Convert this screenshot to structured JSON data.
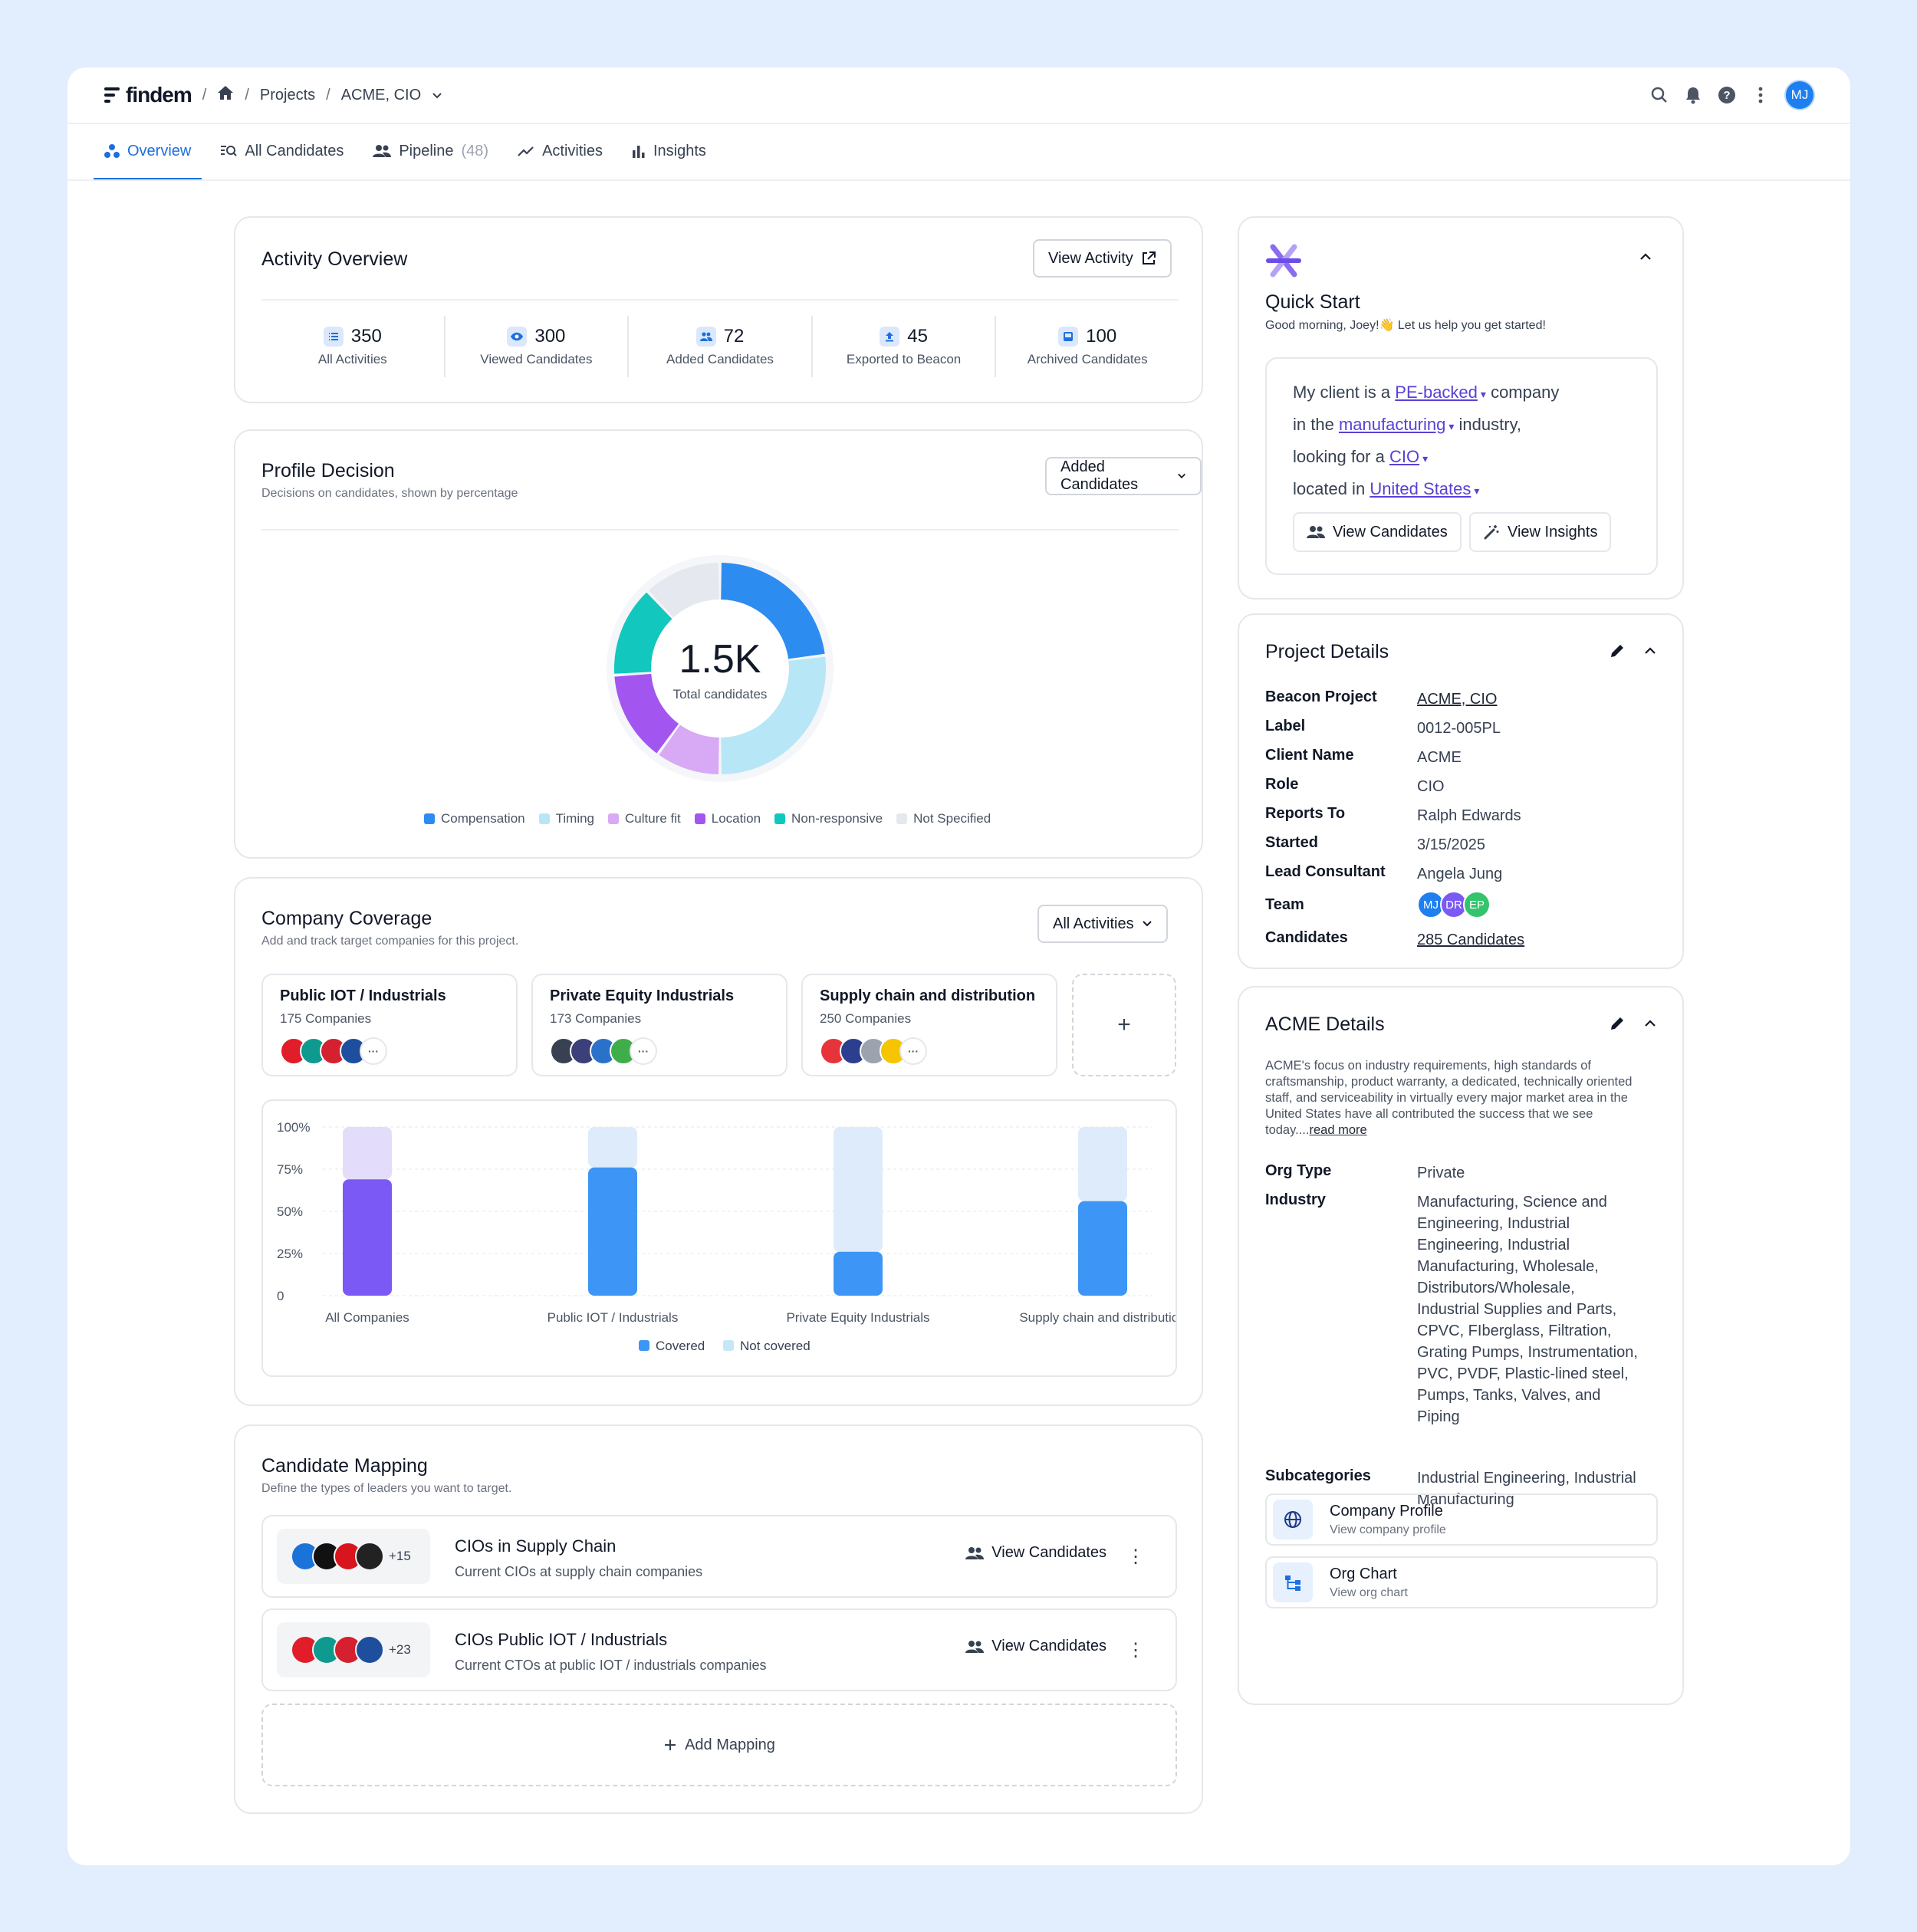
{
  "header": {
    "logo": "findem",
    "breadcrumb": [
      "Projects",
      "ACME, CIO"
    ],
    "avatar": "MJ"
  },
  "tabs": [
    {
      "label": "Overview",
      "count": ""
    },
    {
      "label": "All Candidates",
      "count": ""
    },
    {
      "label": "Pipeline",
      "count": "(48)"
    },
    {
      "label": "Activities",
      "count": ""
    },
    {
      "label": "Insights",
      "count": ""
    }
  ],
  "activity": {
    "title": "Activity Overview",
    "button": "View Activity",
    "stats": [
      {
        "value": "350",
        "label": "All Activities"
      },
      {
        "value": "300",
        "label": "Viewed Candidates"
      },
      {
        "value": "72",
        "label": "Added Candidates"
      },
      {
        "value": "45",
        "label": "Exported to Beacon"
      },
      {
        "value": "100",
        "label": "Archived Candidates"
      }
    ]
  },
  "profile": {
    "title": "Profile Decision",
    "subtitle": "Decisions on candidates, shown by percentage",
    "dropdown": "Added Candidates",
    "total": "1.5K",
    "total_label": "Total candidates"
  },
  "coverage": {
    "title": "Company Coverage",
    "subtitle": "Add and track target companies for this project.",
    "dropdown": "All Activities",
    "groups": [
      {
        "name": "Public IOT / Industrials",
        "count": "175 Companies"
      },
      {
        "name": "Private Equity Industrials",
        "count": "173 Companies"
      },
      {
        "name": "Supply chain and distribution",
        "count": "250 Companies"
      }
    ],
    "add": "+"
  },
  "chart_data": [
    {
      "type": "pie",
      "categories": [
        "Compensation",
        "Timing",
        "Culture fit",
        "Location",
        "Non-responsive",
        "Not Specified"
      ],
      "values": [
        23,
        27,
        10,
        14,
        14,
        12
      ],
      "colors": [
        "#2d8cf0",
        "#b7e6f7",
        "#d8a9f5",
        "#a256ef",
        "#12c7be",
        "#e5e9ef"
      ],
      "legend": "bottom"
    },
    {
      "type": "bar",
      "categories": [
        "All Companies",
        "Public IOT / Industrials",
        "Private Equity Industrials",
        "Supply chain and distribution"
      ],
      "series": [
        {
          "name": "Covered",
          "values": [
            69,
            76,
            26,
            56
          ]
        },
        {
          "name": "Not covered",
          "values": [
            31,
            24,
            74,
            44
          ]
        }
      ],
      "yticks": [
        "100%",
        "75%",
        "50%",
        "25%",
        "0"
      ],
      "ylim": [
        0,
        100
      ],
      "grid": true,
      "legend": "bottom",
      "colors": {
        "covered": "#3d96f5",
        "covered_all": "#7b59f4",
        "not_covered": "#deebfb",
        "not_covered_all": "#e3dcfb"
      }
    }
  ],
  "mapping": {
    "title": "Candidate Mapping",
    "subtitle": "Define the types of leaders you want to target.",
    "rows": [
      {
        "title": "CIOs in Supply Chain",
        "subtitle": "Current CIOs at supply chain companies",
        "more": "+15",
        "action": "View Candidates"
      },
      {
        "title": "CIOs Public IOT / Industrials",
        "subtitle": "Current CTOs at public IOT / industrials companies",
        "more": "+23",
        "action": "View Candidates"
      }
    ],
    "add": "Add Mapping"
  },
  "quickstart": {
    "title": "Quick Start",
    "greeting": "Good morning, Joey!👋 Let us help you get started!",
    "l1a": "My client is a",
    "l1link": "PE-backed",
    "l1b": "company",
    "l2a": "in the",
    "l2link": "manufacturing",
    "l2b": "industry,",
    "l3a": "looking for a",
    "l3link": "CIO",
    "l4a": "located in",
    "l4link": "United States",
    "btn1": "View Candidates",
    "btn2": "View Insights"
  },
  "project": {
    "title": "Project Details",
    "rows": [
      {
        "k": "Beacon Project",
        "v": "ACME, CIO"
      },
      {
        "k": "Label",
        "v": "0012-005PL"
      },
      {
        "k": "Client Name",
        "v": "ACME"
      },
      {
        "k": "Role",
        "v": "CIO"
      },
      {
        "k": "Reports To",
        "v": "Ralph Edwards"
      },
      {
        "k": "Started",
        "v": "3/15/2025"
      },
      {
        "k": "Lead Consultant",
        "v": "Angela Jung"
      },
      {
        "k": "Team",
        "v": ""
      },
      {
        "k": "Candidates",
        "v": "285 Candidates"
      }
    ],
    "team": [
      "MJ",
      "DR",
      "EP"
    ]
  },
  "acme": {
    "title": "ACME Details",
    "desc": "ACME's focus on industry requirements, high standards of craftsmanship, product warranty, a dedicated, technically oriented staff, and serviceability in virtually every major market area in the United States have all contributed the success that we see today....",
    "readmore": "read more",
    "org_type_k": "Org Type",
    "org_type_v": "Private",
    "industry_k": "Industry",
    "industry_v": "Manufacturing, Science and Engineering, Industrial Engineering, Industrial Manufacturing, Wholesale, Distributors/Wholesale, Industrial Supplies and Parts, CPVC, FIberglass, Filtration, Grating Pumps, Instrumentation, PVC, PVDF, Plastic-lined steel, Pumps, Tanks, Valves, and Piping",
    "sub_k": "Subcategories",
    "sub_v": "Industrial Engineering, Industrial Manufacturing",
    "links": [
      {
        "title": "Company Profile",
        "sub": "View company profile"
      },
      {
        "title": "Org Chart",
        "sub": "View org chart"
      }
    ]
  }
}
